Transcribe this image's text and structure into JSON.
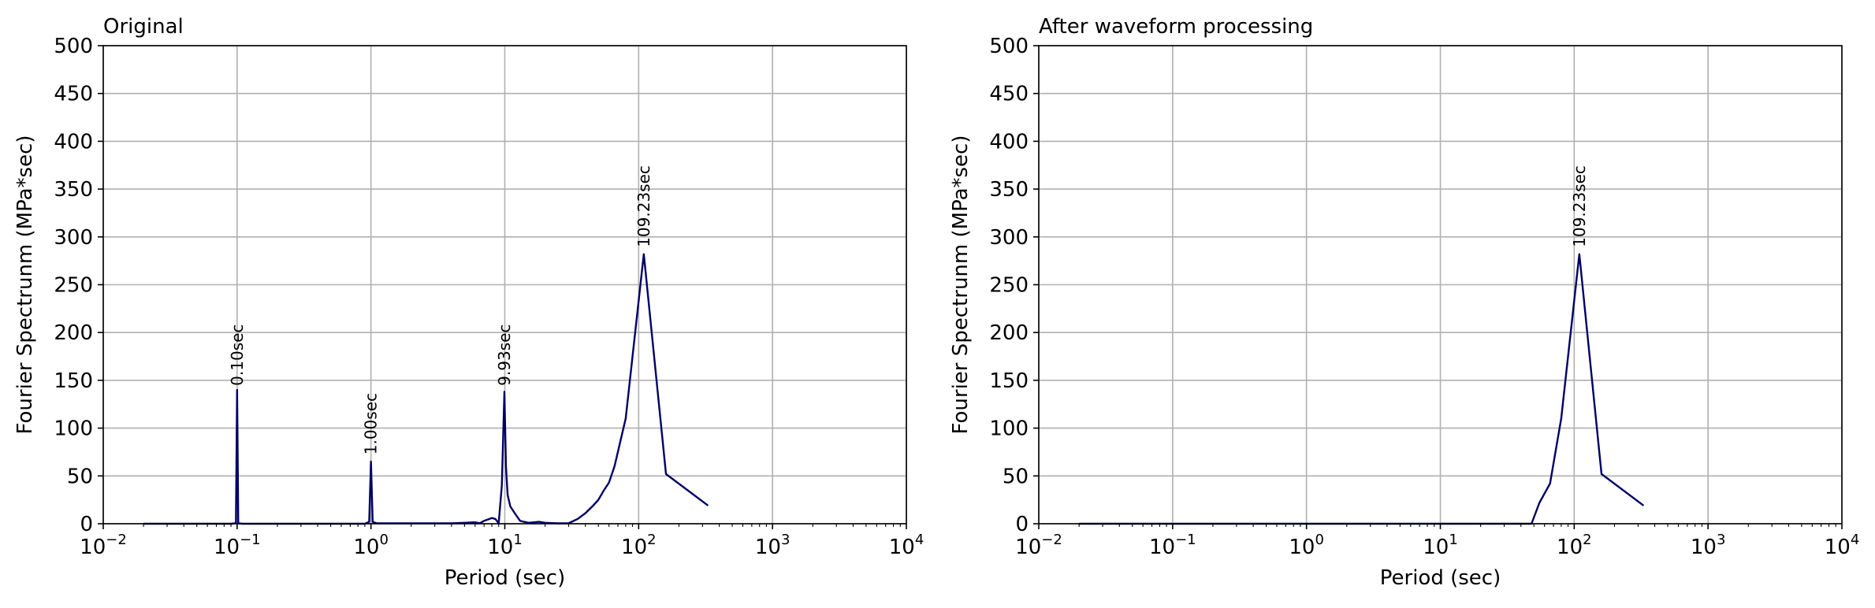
{
  "chart_data": [
    {
      "type": "line",
      "title": "Original",
      "xlabel": "Period (sec)",
      "ylabel": "Fourier Spectrunm (MPa*sec)",
      "xscale": "log",
      "xlim": [
        0.01,
        10000
      ],
      "ylim": [
        0,
        500
      ],
      "xticks": [
        0.01,
        0.1,
        1,
        10,
        100,
        1000,
        10000
      ],
      "xtick_labels": [
        {
          "base": "10",
          "exp": "−2"
        },
        {
          "base": "10",
          "exp": "−1"
        },
        {
          "base": "10",
          "exp": "0"
        },
        {
          "base": "10",
          "exp": "1"
        },
        {
          "base": "10",
          "exp": "2"
        },
        {
          "base": "10",
          "exp": "3"
        },
        {
          "base": "10",
          "exp": "4"
        }
      ],
      "yticks": [
        0,
        50,
        100,
        150,
        200,
        250,
        300,
        350,
        400,
        450,
        500
      ],
      "ytick_labels": [
        "0",
        "50",
        "100",
        "150",
        "200",
        "250",
        "300",
        "350",
        "400",
        "450",
        "500"
      ],
      "grid": true,
      "series": [
        {
          "color": "#000066",
          "x": [
            0.02,
            0.05,
            0.09,
            0.098,
            0.1,
            0.102,
            0.11,
            0.2,
            0.5,
            0.9,
            0.97,
            1.0,
            1.03,
            1.1,
            2,
            4,
            5,
            6,
            6.5,
            7,
            8,
            8.5,
            9,
            9.5,
            9.93,
            10.2,
            10.5,
            11,
            12,
            13,
            15,
            18,
            20,
            25,
            30,
            35,
            40,
            45,
            50,
            55,
            60,
            66,
            80,
            109.23,
            160,
            330
          ],
          "y": [
            0,
            0,
            0,
            0.5,
            140,
            0.5,
            0,
            0,
            0,
            0,
            2,
            65,
            2,
            0.5,
            0.5,
            0.5,
            1,
            1.5,
            0.5,
            3,
            6,
            5,
            0.5,
            40,
            138,
            60,
            30,
            18,
            10,
            3,
            1,
            2,
            1,
            0.5,
            0.5,
            5,
            11,
            18,
            25,
            35,
            43,
            60,
            110,
            282,
            52,
            19
          ]
        }
      ],
      "annotations": [
        {
          "text": "0.10sec",
          "x": 0.1,
          "y": 141
        },
        {
          "text": "1.00sec",
          "x": 1.0,
          "y": 69
        },
        {
          "text": "9.93sec",
          "x": 9.93,
          "y": 141
        },
        {
          "text": "109.23sec",
          "x": 109.23,
          "y": 286
        }
      ]
    },
    {
      "type": "line",
      "title": "After waveform processing",
      "xlabel": "Period (sec)",
      "ylabel": "Fourier Spectrunm (MPa*sec)",
      "xscale": "log",
      "xlim": [
        0.01,
        10000
      ],
      "ylim": [
        0,
        500
      ],
      "xticks": [
        0.01,
        0.1,
        1,
        10,
        100,
        1000,
        10000
      ],
      "xtick_labels": [
        {
          "base": "10",
          "exp": "−2"
        },
        {
          "base": "10",
          "exp": "−1"
        },
        {
          "base": "10",
          "exp": "0"
        },
        {
          "base": "10",
          "exp": "1"
        },
        {
          "base": "10",
          "exp": "2"
        },
        {
          "base": "10",
          "exp": "3"
        },
        {
          "base": "10",
          "exp": "4"
        }
      ],
      "yticks": [
        0,
        50,
        100,
        150,
        200,
        250,
        300,
        350,
        400,
        450,
        500
      ],
      "ytick_labels": [
        "0",
        "50",
        "100",
        "150",
        "200",
        "250",
        "300",
        "350",
        "400",
        "450",
        "500"
      ],
      "grid": true,
      "series": [
        {
          "color": "#000066",
          "x": [
            0.02,
            1,
            10,
            30,
            48,
            55,
            66,
            80,
            109.23,
            160,
            330
          ],
          "y": [
            0,
            0,
            0,
            0,
            0,
            22,
            42,
            110,
            282,
            52,
            19
          ]
        }
      ],
      "annotations": [
        {
          "text": "109.23sec",
          "x": 109.23,
          "y": 286
        }
      ]
    }
  ]
}
